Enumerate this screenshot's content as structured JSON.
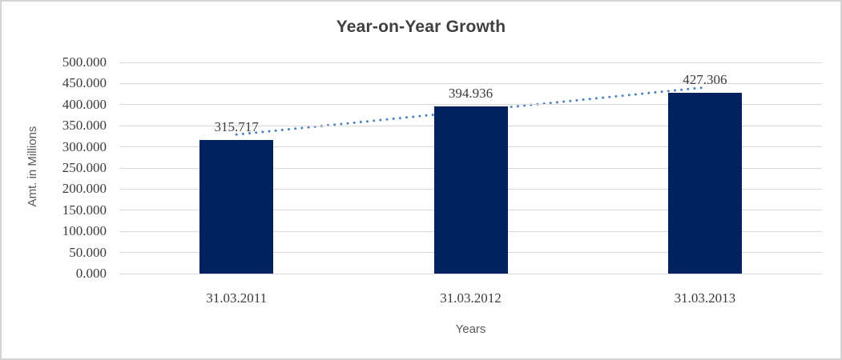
{
  "window": {
    "background": "#ffffff",
    "border_color": "#d4d4d4"
  },
  "chart_data": {
    "type": "bar",
    "title": "Year-on-Year Growth",
    "xlabel": "Years",
    "ylabel": "Amt. in Millions",
    "categories": [
      "31.03.2011",
      "31.03.2012",
      "31.03.2013"
    ],
    "values": [
      315.717,
      394.936,
      427.306
    ],
    "value_labels": [
      "315.717",
      "394.936",
      "427.306"
    ],
    "y_ticks": [
      "0.000",
      "50.000",
      "100.000",
      "150.000",
      "200.000",
      "250.000",
      "300.000",
      "350.000",
      "400.000",
      "450.000",
      "500.000"
    ],
    "ylim": [
      0,
      500
    ],
    "grid": true,
    "legend": "none",
    "bar_color": "#02215F",
    "gridline_color": "#D9D9D9",
    "trendline": {
      "type": "linear",
      "style": "dotted",
      "color": "#4F81BD"
    }
  }
}
